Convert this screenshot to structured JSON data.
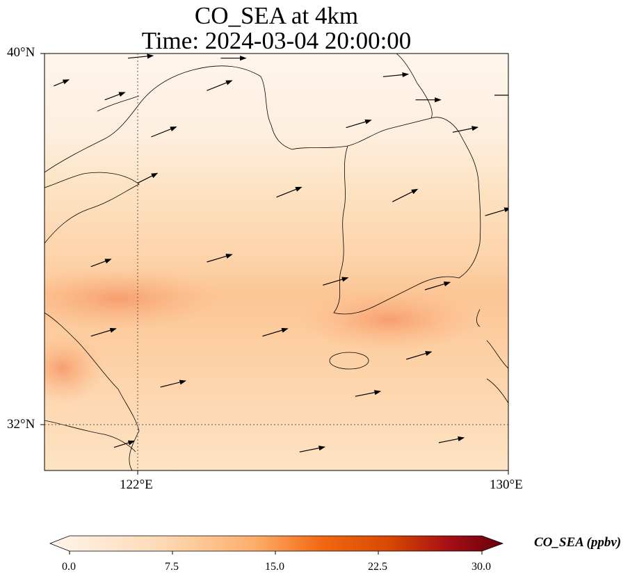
{
  "title_line1": "CO_SEA at 4km",
  "title_line2": "Time: 2024-03-04 20:00:00",
  "axes": {
    "lat_ticks": [
      "40°N",
      "32°N"
    ],
    "lon_ticks": [
      "122°E",
      "130°E"
    ],
    "lon_range": [
      120,
      130
    ],
    "lat_range": [
      31,
      40
    ]
  },
  "colorbar": {
    "label": "CO_SEA (ppbv)",
    "tick_labels": [
      "0.0",
      "7.5",
      "15.0",
      "22.5",
      "30.0"
    ],
    "range": [
      0,
      30
    ],
    "colormap": [
      "#fff5eb",
      "#fdd9b4",
      "#fdae6b",
      "#f16913",
      "#d94801",
      "#a50f15",
      "#67000d"
    ],
    "extend": "both"
  },
  "field_note_colors": {
    "background": "#fff5eb",
    "light": "#fdd9b4",
    "medium": "#fcc08d",
    "high": "#f8a070"
  },
  "chart_data": {
    "type": "heatmap",
    "variable": "CO_SEA",
    "units": "ppbv",
    "lon_range": [
      120,
      130
    ],
    "lat_range": [
      31,
      40
    ],
    "levels": [
      {
        "lat_band": [
          38.5,
          40.0
        ],
        "typical_value": 1
      },
      {
        "lat_band": [
          36.0,
          38.5
        ],
        "typical_value": 5
      },
      {
        "lat_band": [
          34.5,
          36.0
        ],
        "typical_value": 8
      },
      {
        "lat_band": [
          33.5,
          34.5
        ],
        "typical_value": 11
      },
      {
        "lat_band": [
          31.0,
          33.5
        ],
        "typical_value": 8
      }
    ],
    "hotspots": [
      {
        "lon": 120.5,
        "lat": 34.3,
        "value": 12
      },
      {
        "lon": 127.3,
        "lat": 33.7,
        "value": 13
      },
      {
        "lon": 120.1,
        "lat": 33.0,
        "value": 13
      }
    ],
    "wind_vectors": [
      {
        "lon": 121.8,
        "lat": 39.9,
        "u": 2,
        "v": 0.2
      },
      {
        "lon": 123.8,
        "lat": 39.9,
        "u": 2,
        "v": 0
      },
      {
        "lon": 120.2,
        "lat": 39.3,
        "u": 1.2,
        "v": 0.5
      },
      {
        "lon": 121.3,
        "lat": 39.0,
        "u": 1.6,
        "v": 0.6
      },
      {
        "lon": 123.5,
        "lat": 39.2,
        "u": 2,
        "v": 0.8
      },
      {
        "lon": 127.3,
        "lat": 39.5,
        "u": 2,
        "v": 0.2
      },
      {
        "lon": 128.0,
        "lat": 39.0,
        "u": 2,
        "v": 0
      },
      {
        "lon": 129.7,
        "lat": 39.1,
        "u": 2,
        "v": 0
      },
      {
        "lon": 122.3,
        "lat": 38.2,
        "u": 2,
        "v": 0.8
      },
      {
        "lon": 126.5,
        "lat": 38.4,
        "u": 2,
        "v": 0.6
      },
      {
        "lon": 128.8,
        "lat": 38.3,
        "u": 2,
        "v": 0.4
      },
      {
        "lon": 122.0,
        "lat": 37.2,
        "u": 1.6,
        "v": 0.8
      },
      {
        "lon": 125.0,
        "lat": 36.9,
        "u": 2,
        "v": 0.8
      },
      {
        "lon": 127.5,
        "lat": 36.8,
        "u": 2,
        "v": 1
      },
      {
        "lon": 129.5,
        "lat": 36.5,
        "u": 2,
        "v": 0.6
      },
      {
        "lon": 121.0,
        "lat": 35.4,
        "u": 1.6,
        "v": 0.6
      },
      {
        "lon": 123.5,
        "lat": 35.5,
        "u": 2,
        "v": 0.6
      },
      {
        "lon": 126.0,
        "lat": 35.0,
        "u": 2,
        "v": 0.6
      },
      {
        "lon": 128.2,
        "lat": 34.9,
        "u": 2,
        "v": 0.6
      },
      {
        "lon": 121.0,
        "lat": 33.9,
        "u": 2,
        "v": 0.6
      },
      {
        "lon": 124.7,
        "lat": 33.9,
        "u": 2,
        "v": 0.6
      },
      {
        "lon": 127.8,
        "lat": 33.4,
        "u": 2,
        "v": 0.6
      },
      {
        "lon": 122.5,
        "lat": 32.8,
        "u": 2,
        "v": 0.5
      },
      {
        "lon": 126.7,
        "lat": 32.6,
        "u": 2,
        "v": 0.4
      },
      {
        "lon": 121.5,
        "lat": 31.5,
        "u": 1.6,
        "v": 0.5
      },
      {
        "lon": 125.5,
        "lat": 31.4,
        "u": 2,
        "v": 0.4
      },
      {
        "lon": 128.5,
        "lat": 31.6,
        "u": 2,
        "v": 0.4
      }
    ]
  }
}
